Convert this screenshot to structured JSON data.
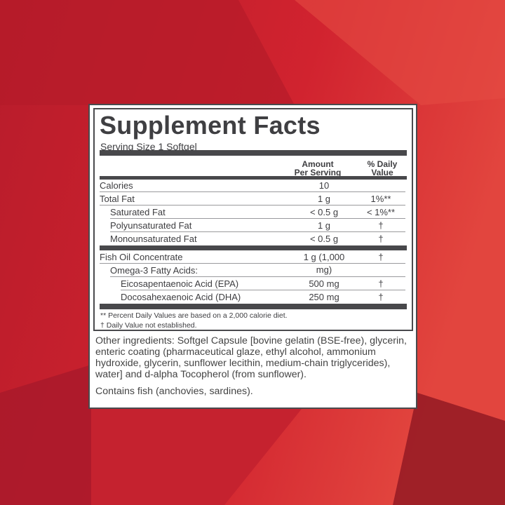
{
  "colors": {
    "background": "#c8202e",
    "label_ink": "#48484b"
  },
  "title": "Supplement Facts",
  "serving_size": "Serving Size 1 Softgel",
  "headers": {
    "amount_line1": "Amount",
    "amount_line2": "Per Serving",
    "dv_line1": "% Daily",
    "dv_line2": "Value"
  },
  "rows": [
    {
      "name": "Calories",
      "amount": "10",
      "dv": ""
    },
    {
      "name": "Total Fat",
      "amount": "1 g",
      "dv": "1%**"
    },
    {
      "name": "Saturated Fat",
      "amount": "< 0.5 g",
      "dv": "< 1%**"
    },
    {
      "name": "Polyunsaturated Fat",
      "amount": "1 g",
      "dv": "†"
    },
    {
      "name": "Monounsaturated Fat",
      "amount": "< 0.5 g",
      "dv": "†"
    },
    {
      "name": "Fish Oil Concentrate",
      "amount": "1 g (1,000 mg)",
      "dv": "†"
    },
    {
      "name": "Omega-3 Fatty Acids:",
      "amount": "",
      "dv": ""
    },
    {
      "name": "Eicosapentaenoic Acid (EPA)",
      "amount": "500 mg",
      "dv": "†"
    },
    {
      "name": "Docosahexaenoic Acid (DHA)",
      "amount": "250 mg",
      "dv": "†"
    }
  ],
  "footnotes": [
    "** Percent Daily Values are based on a 2,000 calorie diet.",
    "† Daily Value not established."
  ],
  "other_ingredients": "Other ingredients: Softgel Capsule [bovine gelatin (BSE-free), glycerin, enteric coating (pharmaceutical glaze, ethyl alcohol, ammonium hydroxide, glycerin, sunflower lecithin, medium-chain triglycerides), water] and d-alpha Tocopherol (from sunflower).",
  "allergen": "Contains fish (anchovies, sardines)."
}
